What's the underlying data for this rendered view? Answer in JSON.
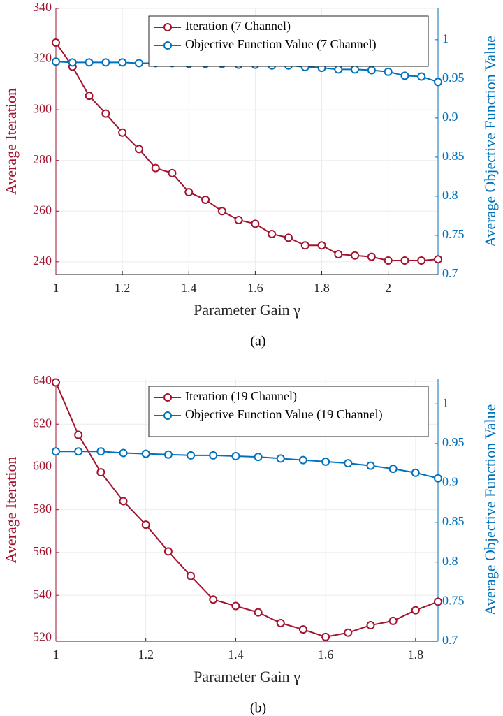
{
  "chart_data": [
    {
      "type": "line",
      "caption": "(a)",
      "xlabel": "Parameter Gain γ",
      "ylabel": "Average Iteration",
      "y2label": "Average Objective Function Value",
      "x": [
        1,
        1.05,
        1.1,
        1.15,
        1.2,
        1.25,
        1.3,
        1.35,
        1.4,
        1.45,
        1.5,
        1.55,
        1.6,
        1.65,
        1.7,
        1.75,
        1.8,
        1.85,
        1.9,
        1.95,
        2,
        2.05,
        2.1,
        2.15
      ],
      "series": [
        {
          "name": "Iteration (7 Channel)",
          "color": "#a2142f",
          "values": [
            326.5,
            317,
            305.5,
            298.5,
            291,
            284.5,
            277,
            275,
            267.5,
            264.5,
            260,
            256.5,
            255,
            251,
            249.5,
            246.5,
            246.5,
            243,
            242.5,
            242,
            240.5,
            240.5,
            240.5,
            241
          ]
        },
        {
          "name": "Objective Function Value (7 Channel)",
          "color": "#0072bd",
          "axis": "y2",
          "values": [
            0.972,
            0.971,
            0.971,
            0.971,
            0.971,
            0.97,
            0.97,
            0.97,
            0.969,
            0.969,
            0.969,
            0.968,
            0.968,
            0.967,
            0.967,
            0.965,
            0.964,
            0.962,
            0.962,
            0.961,
            0.959,
            0.954,
            0.953,
            0.946
          ]
        }
      ],
      "xlim": [
        1,
        2.15
      ],
      "xticks": [
        1,
        1.2,
        1.4,
        1.6,
        1.8,
        2
      ],
      "ylim": [
        235,
        340
      ],
      "yticks": [
        240,
        260,
        280,
        300,
        320,
        340
      ],
      "y2lim": [
        0.7,
        1.04
      ],
      "y2ticks": [
        0.7,
        0.75,
        0.8,
        0.85,
        0.9,
        0.95,
        1
      ],
      "grid": true,
      "legend": "upper right"
    },
    {
      "type": "line",
      "caption": "(b)",
      "xlabel": "Parameter Gain γ",
      "ylabel": "Average Iteration",
      "y2label": "Average Objective Function Value",
      "x": [
        1,
        1.05,
        1.1,
        1.15,
        1.2,
        1.25,
        1.3,
        1.35,
        1.4,
        1.45,
        1.5,
        1.55,
        1.6,
        1.65,
        1.7,
        1.75,
        1.8,
        1.85
      ],
      "series": [
        {
          "name": "Iteration (19 Channel)",
          "color": "#a2142f",
          "values": [
            639.5,
            615,
            597.5,
            584,
            573,
            560.5,
            549,
            538,
            535,
            532,
            527,
            524,
            520.5,
            522.5,
            526,
            528,
            533,
            537
          ]
        },
        {
          "name": "Objective Function Value (19 Channel)",
          "color": "#0072bd",
          "axis": "y2",
          "values": [
            0.94,
            0.94,
            0.94,
            0.938,
            0.937,
            0.936,
            0.935,
            0.935,
            0.934,
            0.933,
            0.931,
            0.929,
            0.927,
            0.925,
            0.922,
            0.918,
            0.913,
            0.906
          ]
        }
      ],
      "xlim": [
        1,
        1.85
      ],
      "xticks": [
        1,
        1.2,
        1.4,
        1.6,
        1.8
      ],
      "ylim": [
        518.5,
        641.3
      ],
      "yticks": [
        520,
        540,
        560,
        580,
        600,
        620,
        640
      ],
      "y2lim": [
        0.7,
        1.032
      ],
      "y2ticks": [
        0.7,
        0.75,
        0.8,
        0.85,
        0.9,
        0.95,
        1
      ],
      "grid": true,
      "legend": "upper right"
    }
  ]
}
